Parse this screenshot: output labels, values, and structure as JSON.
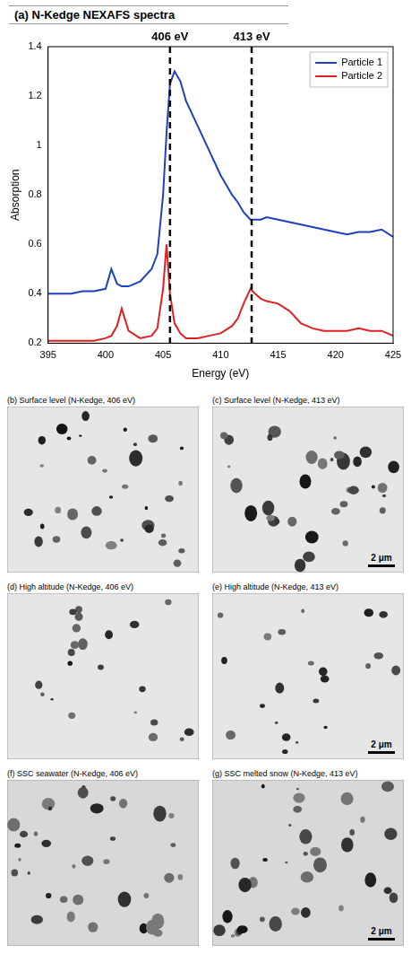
{
  "chart_data": {
    "type": "line",
    "title": "(a) N-Kedge NEXAFS spectra",
    "x_label": "Energy (eV)",
    "y_label": "Absorption",
    "x": [
      395,
      396,
      397,
      398,
      399,
      400,
      400.5,
      401,
      401.4,
      402,
      403,
      404,
      404.5,
      405,
      405.3,
      405.6,
      406,
      406.5,
      407,
      408,
      409,
      410,
      411,
      411.5,
      412,
      412.6,
      413,
      413.5,
      414,
      415,
      416,
      417,
      418,
      419,
      420,
      421,
      422,
      423,
      424,
      425
    ],
    "series": [
      {
        "name": "Particle 1",
        "color": "#1f3fbf",
        "values": [
          0.4,
          0.4,
          0.4,
          0.41,
          0.41,
          0.42,
          0.5,
          0.44,
          0.43,
          0.43,
          0.45,
          0.5,
          0.56,
          0.8,
          1.05,
          1.25,
          1.3,
          1.26,
          1.18,
          1.08,
          0.98,
          0.88,
          0.8,
          0.77,
          0.73,
          0.7,
          0.7,
          0.7,
          0.71,
          0.7,
          0.69,
          0.68,
          0.67,
          0.66,
          0.65,
          0.64,
          0.65,
          0.65,
          0.66,
          0.63
        ]
      },
      {
        "name": "Particle 2",
        "color": "#e02020",
        "values": [
          0.21,
          0.21,
          0.21,
          0.21,
          0.21,
          0.22,
          0.23,
          0.27,
          0.34,
          0.25,
          0.22,
          0.23,
          0.26,
          0.42,
          0.6,
          0.4,
          0.28,
          0.24,
          0.22,
          0.22,
          0.23,
          0.24,
          0.27,
          0.3,
          0.36,
          0.42,
          0.4,
          0.38,
          0.37,
          0.36,
          0.33,
          0.28,
          0.26,
          0.25,
          0.25,
          0.25,
          0.26,
          0.25,
          0.25,
          0.23
        ]
      }
    ],
    "xlim": [
      395,
      425
    ],
    "xticks": [
      395,
      400,
      405,
      410,
      415,
      420,
      425
    ],
    "ylim": [
      0.2,
      1.4
    ],
    "yticks": [
      0.2,
      0.4,
      0.6,
      0.8,
      1,
      1.2,
      1.4
    ],
    "grid": false,
    "legend": "upper right",
    "annotations": [
      {
        "x": 405.6,
        "label": "406 eV",
        "line_style": "dashed"
      },
      {
        "x": 412.7,
        "label": "413 eV",
        "line_style": "dashed"
      }
    ]
  },
  "panels": [
    {
      "title": "(b) Surface level (N-Kedge, 406 eV)"
    },
    {
      "title": "(c) Surface level (N-Kedge, 413 eV)",
      "scale_bar": "2 μm"
    },
    {
      "title": "(d) High altitude (N-Kedge, 406 eV)"
    },
    {
      "title": "(e) High altitude (N-Kedge, 413 eV)",
      "scale_bar": "2 μm"
    },
    {
      "title": "(f) SSC seawater (N-Kedge, 406 eV)"
    },
    {
      "title": "(g) SSC melted snow (N-Kedge, 413 eV)",
      "scale_bar": "2 μm"
    }
  ]
}
